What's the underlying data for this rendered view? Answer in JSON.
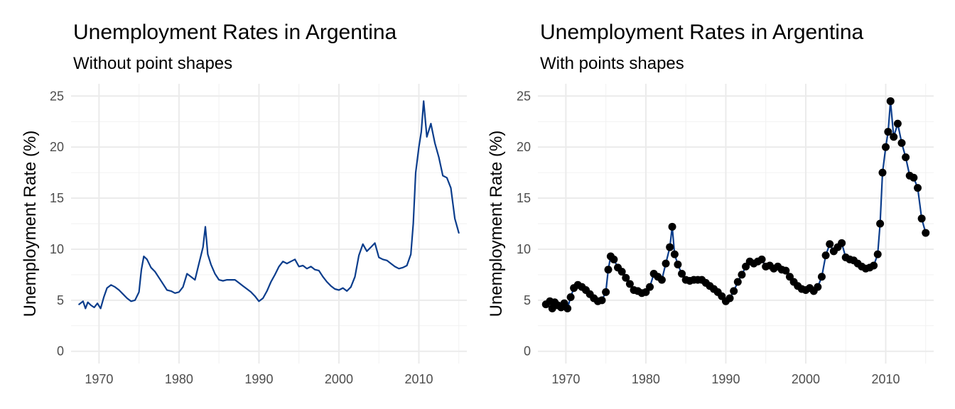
{
  "chart_data": [
    {
      "type": "line",
      "title": "Unemployment Rates in Argentina",
      "subtitle": "Without point shapes",
      "xlabel": "",
      "ylabel": "Unemployment Rate (%)",
      "xlim": [
        1966.5,
        2016
      ],
      "ylim": [
        -1.2,
        26.2
      ],
      "x_ticks": [
        1970,
        1980,
        1990,
        2000,
        2010
      ],
      "y_ticks": [
        0,
        5,
        10,
        15,
        20,
        25
      ],
      "grid": true,
      "show_points": false,
      "line_color": "#0b3d8c",
      "point_color": "#000000",
      "series": [
        {
          "x": [
            1967.5,
            1968.0,
            1968.3,
            1968.6,
            1969.0,
            1969.4,
            1969.8,
            1970.2,
            1970.6,
            1971.0,
            1971.5,
            1972.0,
            1972.5,
            1973.0,
            1973.5,
            1974.0,
            1974.5,
            1975.0,
            1975.3,
            1975.6,
            1976.0,
            1976.5,
            1977.0,
            1977.5,
            1978.0,
            1978.5,
            1979.0,
            1979.5,
            1980.0,
            1980.5,
            1981.0,
            1981.5,
            1982.0,
            1982.5,
            1983.0,
            1983.3,
            1983.6,
            1984.0,
            1984.5,
            1985.0,
            1985.5,
            1986.0,
            1986.5,
            1987.0,
            1987.5,
            1988.0,
            1988.5,
            1989.0,
            1989.5,
            1990.0,
            1990.5,
            1991.0,
            1991.5,
            1992.0,
            1992.5,
            1993.0,
            1993.5,
            1994.0,
            1994.5,
            1995.0,
            1995.5,
            1996.0,
            1996.5,
            1997.0,
            1997.5,
            1998.0,
            1998.5,
            1999.0,
            1999.5,
            2000.0,
            2000.5,
            2001.0,
            2001.5,
            2002.0,
            2002.5,
            2003.0,
            2003.5,
            2004.0,
            2004.5,
            2005.0,
            2005.5,
            2006.0,
            2006.5,
            2007.0,
            2007.5,
            2008.0,
            2008.5,
            2009.0,
            2009.3,
            2009.6,
            2010.0,
            2010.3,
            2010.6,
            2011.0,
            2011.5,
            2012.0,
            2012.5,
            2013.0,
            2013.5,
            2014.0,
            2014.5,
            2015.0
          ],
          "y": [
            4.6,
            4.9,
            4.2,
            4.8,
            4.5,
            4.3,
            4.7,
            4.2,
            5.3,
            6.2,
            6.5,
            6.3,
            6.0,
            5.6,
            5.2,
            4.9,
            5.0,
            5.8,
            8.0,
            9.3,
            9.0,
            8.2,
            7.8,
            7.2,
            6.6,
            6.0,
            5.9,
            5.7,
            5.8,
            6.3,
            7.6,
            7.3,
            7.0,
            8.6,
            10.2,
            12.2,
            9.5,
            8.5,
            7.6,
            7.0,
            6.9,
            7.0,
            7.0,
            7.0,
            6.7,
            6.4,
            6.1,
            5.8,
            5.4,
            4.9,
            5.2,
            5.9,
            6.8,
            7.5,
            8.3,
            8.8,
            8.6,
            8.8,
            9.0,
            8.3,
            8.4,
            8.1,
            8.3,
            8.0,
            7.9,
            7.3,
            6.8,
            6.4,
            6.1,
            6.0,
            6.2,
            5.9,
            6.3,
            7.3,
            9.4,
            10.5,
            9.8,
            10.2,
            10.6,
            9.2,
            9.0,
            8.9,
            8.6,
            8.3,
            8.1,
            8.2,
            8.4,
            9.5,
            12.5,
            17.5,
            20.0,
            21.5,
            24.5,
            21.0,
            22.3,
            20.4,
            19.0,
            17.2,
            17.0,
            16.0,
            13.0,
            11.6
          ]
        }
      ]
    },
    {
      "type": "line",
      "title": "Unemployment Rates in Argentina",
      "subtitle": "With points shapes",
      "xlabel": "",
      "ylabel": "Unemployment Rate (%)",
      "xlim": [
        1966.5,
        2016
      ],
      "ylim": [
        -1.2,
        26.2
      ],
      "x_ticks": [
        1970,
        1980,
        1990,
        2000,
        2010
      ],
      "y_ticks": [
        0,
        5,
        10,
        15,
        20,
        25
      ],
      "grid": true,
      "show_points": true,
      "line_color": "#0b3d8c",
      "point_color": "#000000",
      "series": [
        {
          "x": [
            1967.5,
            1968.0,
            1968.3,
            1968.6,
            1969.0,
            1969.4,
            1969.8,
            1970.2,
            1970.6,
            1971.0,
            1971.5,
            1972.0,
            1972.5,
            1973.0,
            1973.5,
            1974.0,
            1974.5,
            1975.0,
            1975.3,
            1975.6,
            1976.0,
            1976.5,
            1977.0,
            1977.5,
            1978.0,
            1978.5,
            1979.0,
            1979.5,
            1980.0,
            1980.5,
            1981.0,
            1981.5,
            1982.0,
            1982.5,
            1983.0,
            1983.3,
            1983.6,
            1984.0,
            1984.5,
            1985.0,
            1985.5,
            1986.0,
            1986.5,
            1987.0,
            1987.5,
            1988.0,
            1988.5,
            1989.0,
            1989.5,
            1990.0,
            1990.5,
            1991.0,
            1991.5,
            1992.0,
            1992.5,
            1993.0,
            1993.5,
            1994.0,
            1994.5,
            1995.0,
            1995.5,
            1996.0,
            1996.5,
            1997.0,
            1997.5,
            1998.0,
            1998.5,
            1999.0,
            1999.5,
            2000.0,
            2000.5,
            2001.0,
            2001.5,
            2002.0,
            2002.5,
            2003.0,
            2003.5,
            2004.0,
            2004.5,
            2005.0,
            2005.5,
            2006.0,
            2006.5,
            2007.0,
            2007.5,
            2008.0,
            2008.5,
            2009.0,
            2009.3,
            2009.6,
            2010.0,
            2010.3,
            2010.6,
            2011.0,
            2011.5,
            2012.0,
            2012.5,
            2013.0,
            2013.5,
            2014.0,
            2014.5,
            2015.0
          ],
          "y": [
            4.6,
            4.9,
            4.2,
            4.8,
            4.5,
            4.3,
            4.7,
            4.2,
            5.3,
            6.2,
            6.5,
            6.3,
            6.0,
            5.6,
            5.2,
            4.9,
            5.0,
            5.8,
            8.0,
            9.3,
            9.0,
            8.2,
            7.8,
            7.2,
            6.6,
            6.0,
            5.9,
            5.7,
            5.8,
            6.3,
            7.6,
            7.3,
            7.0,
            8.6,
            10.2,
            12.2,
            9.5,
            8.5,
            7.6,
            7.0,
            6.9,
            7.0,
            7.0,
            7.0,
            6.7,
            6.4,
            6.1,
            5.8,
            5.4,
            4.9,
            5.2,
            5.9,
            6.8,
            7.5,
            8.3,
            8.8,
            8.6,
            8.8,
            9.0,
            8.3,
            8.4,
            8.1,
            8.3,
            8.0,
            7.9,
            7.3,
            6.8,
            6.4,
            6.1,
            6.0,
            6.2,
            5.9,
            6.3,
            7.3,
            9.4,
            10.5,
            9.8,
            10.2,
            10.6,
            9.2,
            9.0,
            8.9,
            8.6,
            8.3,
            8.1,
            8.2,
            8.4,
            9.5,
            12.5,
            17.5,
            20.0,
            21.5,
            24.5,
            21.0,
            22.3,
            20.4,
            19.0,
            17.2,
            17.0,
            16.0,
            13.0,
            11.6
          ]
        }
      ]
    }
  ]
}
